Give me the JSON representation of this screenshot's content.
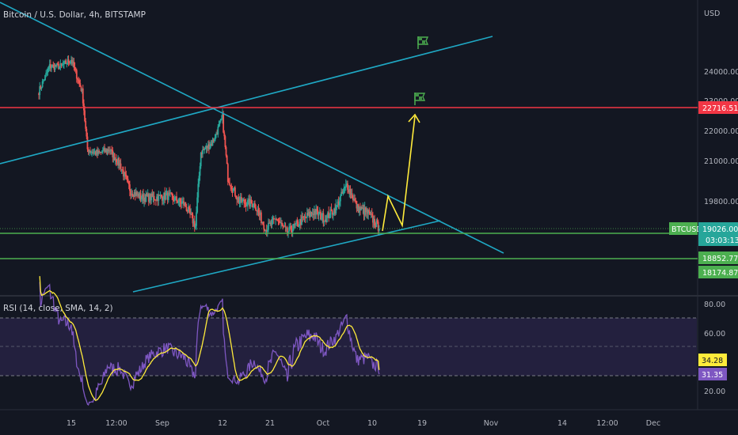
{
  "header": {
    "title": "Bitcoin / U.S. Dollar, 4h, BITSTAMP",
    "currency": "USD"
  },
  "price_axis": {
    "ticks": [
      "24000.00",
      "23000.00",
      "22000.00",
      "21000.00",
      "19800.00"
    ],
    "tags": {
      "resistance": "22716.51",
      "symbol": "BTCUSD",
      "last_price": "19026.00",
      "countdown": "03:03:13",
      "support1": "18852.77",
      "support2": "18174.87"
    }
  },
  "time_axis": {
    "labels": [
      "15",
      "12:00",
      "Sep",
      "12",
      "21",
      "Oct",
      "10",
      "19",
      "Nov",
      "14",
      "12:00",
      "Dec"
    ]
  },
  "rsi": {
    "title": "RSI (14, close, SMA, 14, 2)",
    "ticks": [
      "80.00",
      "60.00",
      "20.00"
    ],
    "tags": {
      "signal": "34.28",
      "rsi": "31.35"
    }
  },
  "colors": {
    "background": "#131722",
    "candle_up": "#26a69a",
    "candle_down": "#ef5350",
    "trendline": "#1fa8c4",
    "resistance": "#f23645",
    "support": "#4caf50",
    "projection": "#ffeb3b",
    "rsi_line": "#7e57c2",
    "rsi_signal": "#ffeb3b",
    "rsi_band": "#2a2448"
  },
  "chart_data": {
    "type": "candlestick",
    "symbol": "BTCUSD",
    "interval": "4h",
    "price_unit": "USD",
    "waypoints": [
      {
        "x": "Aug 9",
        "price": 23300
      },
      {
        "x": "Aug 11",
        "price": 24200
      },
      {
        "x": "Aug 13",
        "price": 24200
      },
      {
        "x": "Aug 15",
        "price": 24450
      },
      {
        "x": "Aug 17",
        "price": 23300
      },
      {
        "x": "Aug 18",
        "price": 21400
      },
      {
        "x": "Aug 20",
        "price": 21250
      },
      {
        "x": "Aug 22",
        "price": 21400
      },
      {
        "x": "Aug 24",
        "price": 20900
      },
      {
        "x": "Aug 26",
        "price": 20100
      },
      {
        "x": "Aug 28",
        "price": 19900
      },
      {
        "x": "Aug 30",
        "price": 19900
      },
      {
        "x": "Sep 2",
        "price": 19950
      },
      {
        "x": "Sep 5",
        "price": 19700
      },
      {
        "x": "Sep 7",
        "price": 19100
      },
      {
        "x": "Sep 8",
        "price": 21300
      },
      {
        "x": "Sep 10",
        "price": 21600
      },
      {
        "x": "Sep 12",
        "price": 22400
      },
      {
        "x": "Sep 13",
        "price": 20500
      },
      {
        "x": "Sep 15",
        "price": 19800
      },
      {
        "x": "Sep 18",
        "price": 19700
      },
      {
        "x": "Sep 20",
        "price": 19000
      },
      {
        "x": "Sep 22",
        "price": 19300
      },
      {
        "x": "Sep 24",
        "price": 18900
      },
      {
        "x": "Sep 27",
        "price": 19300
      },
      {
        "x": "Sep 29",
        "price": 19500
      },
      {
        "x": "Oct 1",
        "price": 19300
      },
      {
        "x": "Oct 3",
        "price": 19600
      },
      {
        "x": "Oct 5",
        "price": 20300
      },
      {
        "x": "Oct 7",
        "price": 19600
      },
      {
        "x": "Oct 9",
        "price": 19450
      },
      {
        "x": "Oct 11",
        "price": 19026
      }
    ],
    "horizontal_levels": [
      22716.51,
      18852.77,
      18174.87
    ],
    "last_price": 19026.0,
    "rsi": {
      "period": 14,
      "source": "close",
      "smoothing": "SMA",
      "smoothing_length": 14,
      "last_rsi": 31.35,
      "last_signal": 34.28,
      "overbought": 70,
      "oversold": 30
    },
    "annotations": [
      "descending trendline",
      "ascending trendline",
      "rising channel line",
      "projected breakout path to resistance",
      "target flags"
    ]
  }
}
